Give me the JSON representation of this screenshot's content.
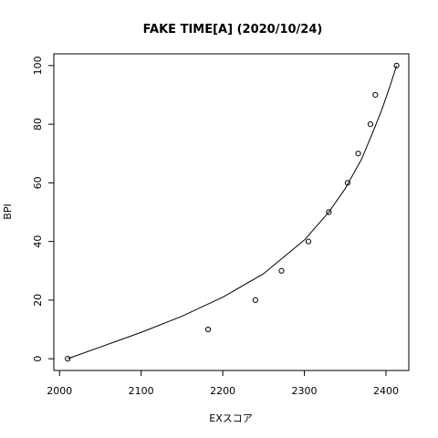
{
  "chart_data": {
    "type": "scatter",
    "title": "FAKE TIME[A] (2020/10/24)",
    "xlabel": "EXスコア",
    "ylabel": "BPI",
    "xlim": [
      1993,
      2428
    ],
    "ylim": [
      -4,
      104
    ],
    "x_ticks": [
      2000,
      2100,
      2200,
      2300,
      2400
    ],
    "y_ticks": [
      0,
      20,
      40,
      60,
      80,
      100
    ],
    "grid": false,
    "legend": "none",
    "points": [
      {
        "x": 2010,
        "y": 0
      },
      {
        "x": 2182,
        "y": 10
      },
      {
        "x": 2240,
        "y": 20
      },
      {
        "x": 2272,
        "y": 30
      },
      {
        "x": 2305,
        "y": 40
      },
      {
        "x": 2330,
        "y": 50
      },
      {
        "x": 2353,
        "y": 60
      },
      {
        "x": 2366,
        "y": 70
      },
      {
        "x": 2381,
        "y": 80
      },
      {
        "x": 2387,
        "y": 90
      },
      {
        "x": 2413,
        "y": 100
      }
    ],
    "fit_curve": [
      {
        "x": 2010,
        "y": 0
      },
      {
        "x": 2050,
        "y": 4
      },
      {
        "x": 2100,
        "y": 9
      },
      {
        "x": 2150,
        "y": 14.5
      },
      {
        "x": 2200,
        "y": 21
      },
      {
        "x": 2250,
        "y": 29
      },
      {
        "x": 2300,
        "y": 40.5
      },
      {
        "x": 2330,
        "y": 50
      },
      {
        "x": 2350,
        "y": 58
      },
      {
        "x": 2370,
        "y": 68
      },
      {
        "x": 2385,
        "y": 78
      },
      {
        "x": 2395,
        "y": 85
      },
      {
        "x": 2405,
        "y": 93
      },
      {
        "x": 2413,
        "y": 100
      }
    ],
    "colors": {
      "points": "#000000",
      "line": "#000000",
      "background": "#ffffff"
    }
  }
}
